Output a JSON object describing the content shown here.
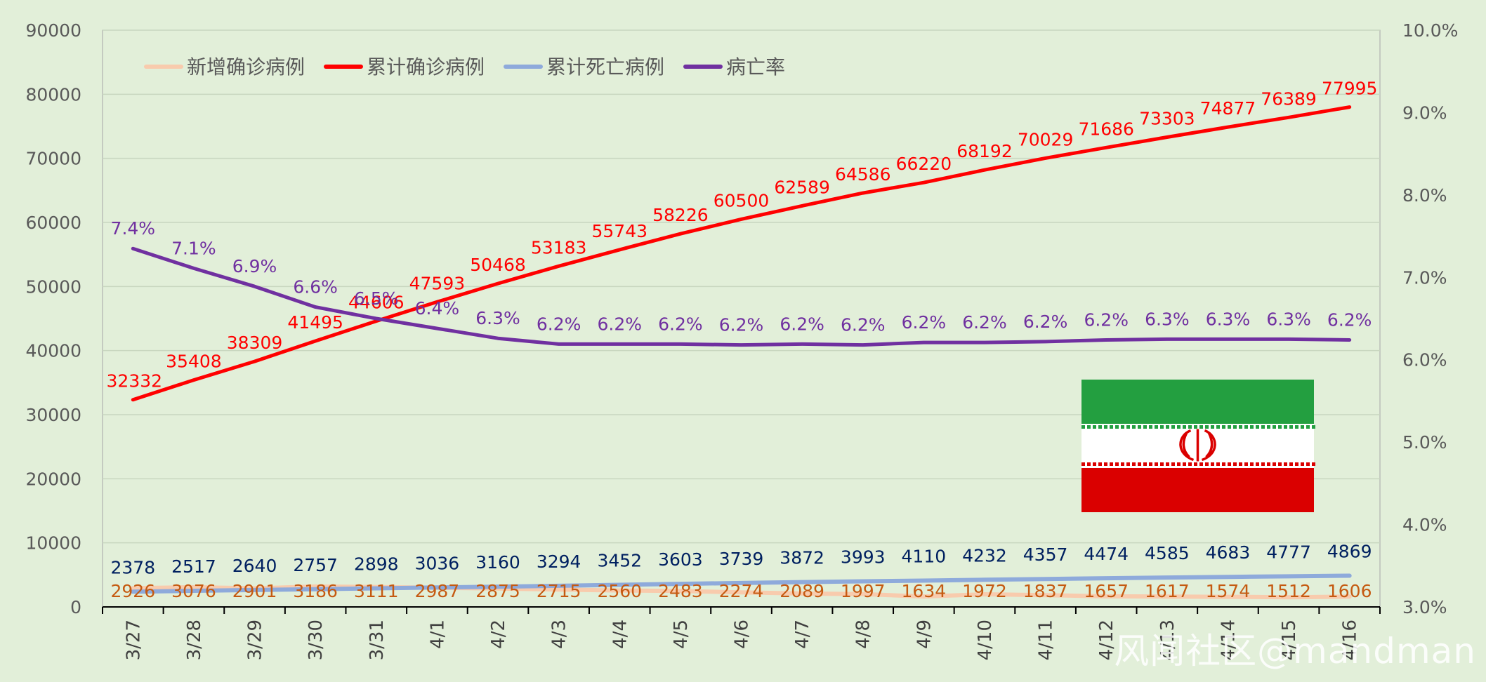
{
  "chart_data": {
    "type": "line",
    "categories": [
      "3/27",
      "3/28",
      "3/29",
      "3/30",
      "3/31",
      "4/1",
      "4/2",
      "4/3",
      "4/4",
      "4/5",
      "4/6",
      "4/7",
      "4/8",
      "4/9",
      "4/10",
      "4/11",
      "4/12",
      "4/13",
      "4/14",
      "4/15",
      "4/16"
    ],
    "left_axis": {
      "min": 0,
      "max": 90000,
      "step": 10000,
      "ticks": [
        "0",
        "10000",
        "20000",
        "30000",
        "40000",
        "50000",
        "60000",
        "70000",
        "80000",
        "90000"
      ]
    },
    "right_axis": {
      "min": 3.0,
      "max": 10.0,
      "step": 1.0,
      "ticks": [
        "3.0%",
        "4.0%",
        "5.0%",
        "6.0%",
        "7.0%",
        "8.0%",
        "9.0%",
        "10.0%"
      ]
    },
    "grid": true,
    "legend_position": "top-left",
    "series": [
      {
        "name": "新增确诊病例",
        "axis": "left",
        "color": "#f8cbad",
        "label_color": "#c55a11",
        "values": [
          2926,
          3076,
          2901,
          3186,
          3111,
          2987,
          2875,
          2715,
          2560,
          2483,
          2274,
          2089,
          1997,
          1634,
          1972,
          1837,
          1657,
          1617,
          1574,
          1512,
          1606
        ],
        "labels": [
          "2926",
          "3076",
          "2901",
          "3186",
          "3111",
          "2987",
          "2875",
          "2715",
          "2560",
          "2483",
          "2274",
          "2089",
          "1997",
          "1634",
          "1972",
          "1837",
          "1657",
          "1617",
          "1574",
          "1512",
          "1606"
        ]
      },
      {
        "name": "累计确诊病例",
        "axis": "left",
        "color": "#ff0000",
        "label_color": "#ff0000",
        "values": [
          32332,
          35408,
          38309,
          41495,
          44606,
          47593,
          50468,
          53183,
          55743,
          58226,
          60500,
          62589,
          64586,
          66220,
          68192,
          70029,
          71686,
          73303,
          74877,
          76389,
          77995
        ],
        "labels": [
          "32332",
          "35408",
          "38309",
          "41495",
          "44606",
          "47593",
          "50468",
          "53183",
          "55743",
          "58226",
          "60500",
          "62589",
          "64586",
          "66220",
          "68192",
          "70029",
          "71686",
          "73303",
          "74877",
          "76389",
          "77995"
        ]
      },
      {
        "name": "累计死亡病例",
        "axis": "left",
        "color": "#8eaadb",
        "label_color": "#002060",
        "values": [
          2378,
          2517,
          2640,
          2757,
          2898,
          3036,
          3160,
          3294,
          3452,
          3603,
          3739,
          3872,
          3993,
          4110,
          4232,
          4357,
          4474,
          4585,
          4683,
          4777,
          4869
        ],
        "labels": [
          "2378",
          "2517",
          "2640",
          "2757",
          "2898",
          "3036",
          "3160",
          "3294",
          "3452",
          "3603",
          "3739",
          "3872",
          "3993",
          "4110",
          "4232",
          "4357",
          "4474",
          "4585",
          "4683",
          "4777",
          "4869"
        ]
      },
      {
        "name": "病亡率",
        "axis": "right",
        "color": "#7030a0",
        "label_color": "#7030a0",
        "values": [
          7.35,
          7.11,
          6.89,
          6.64,
          6.5,
          6.38,
          6.26,
          6.19,
          6.19,
          6.19,
          6.18,
          6.19,
          6.18,
          6.21,
          6.21,
          6.22,
          6.24,
          6.25,
          6.25,
          6.25,
          6.24
        ],
        "labels": [
          "7.4%",
          "7.1%",
          "6.9%",
          "6.6%",
          "6.5%",
          "6.4%",
          "6.3%",
          "6.2%",
          "6.2%",
          "6.2%",
          "6.2%",
          "6.2%",
          "6.2%",
          "6.2%",
          "6.2%",
          "6.2%",
          "6.2%",
          "6.3%",
          "6.3%",
          "6.3%",
          "6.2%"
        ]
      }
    ]
  },
  "flag": {
    "description_icon": "iran-flag-icon",
    "colors": {
      "green": "#239f40",
      "white": "#ffffff",
      "red": "#da0000"
    }
  },
  "watermark": "风闻社区@mandman"
}
